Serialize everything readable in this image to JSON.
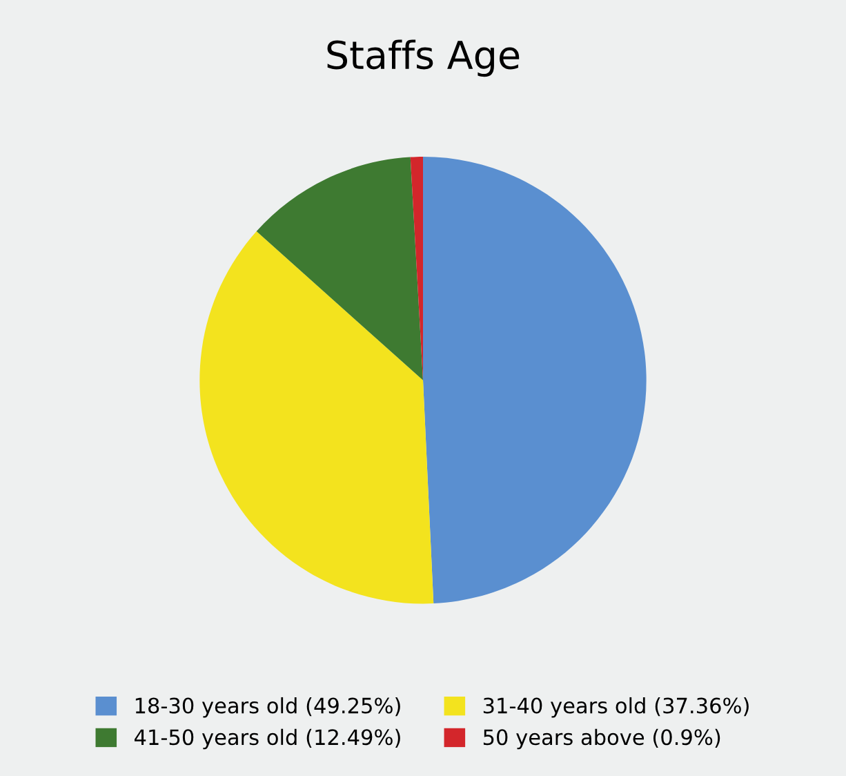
{
  "chart_data": {
    "type": "pie",
    "title": "Staffs Age",
    "categories": [
      "18-30 years old (49.25%)",
      "31-40 years old (37.36%)",
      "41-50 years old (12.49%)",
      "50 years above (0.9%)"
    ],
    "values": [
      49.25,
      37.36,
      12.49,
      0.9
    ],
    "colors": [
      "#5a8fd0",
      "#f3e31e",
      "#3e7a31",
      "#d3262b"
    ],
    "legend": "bottom"
  }
}
